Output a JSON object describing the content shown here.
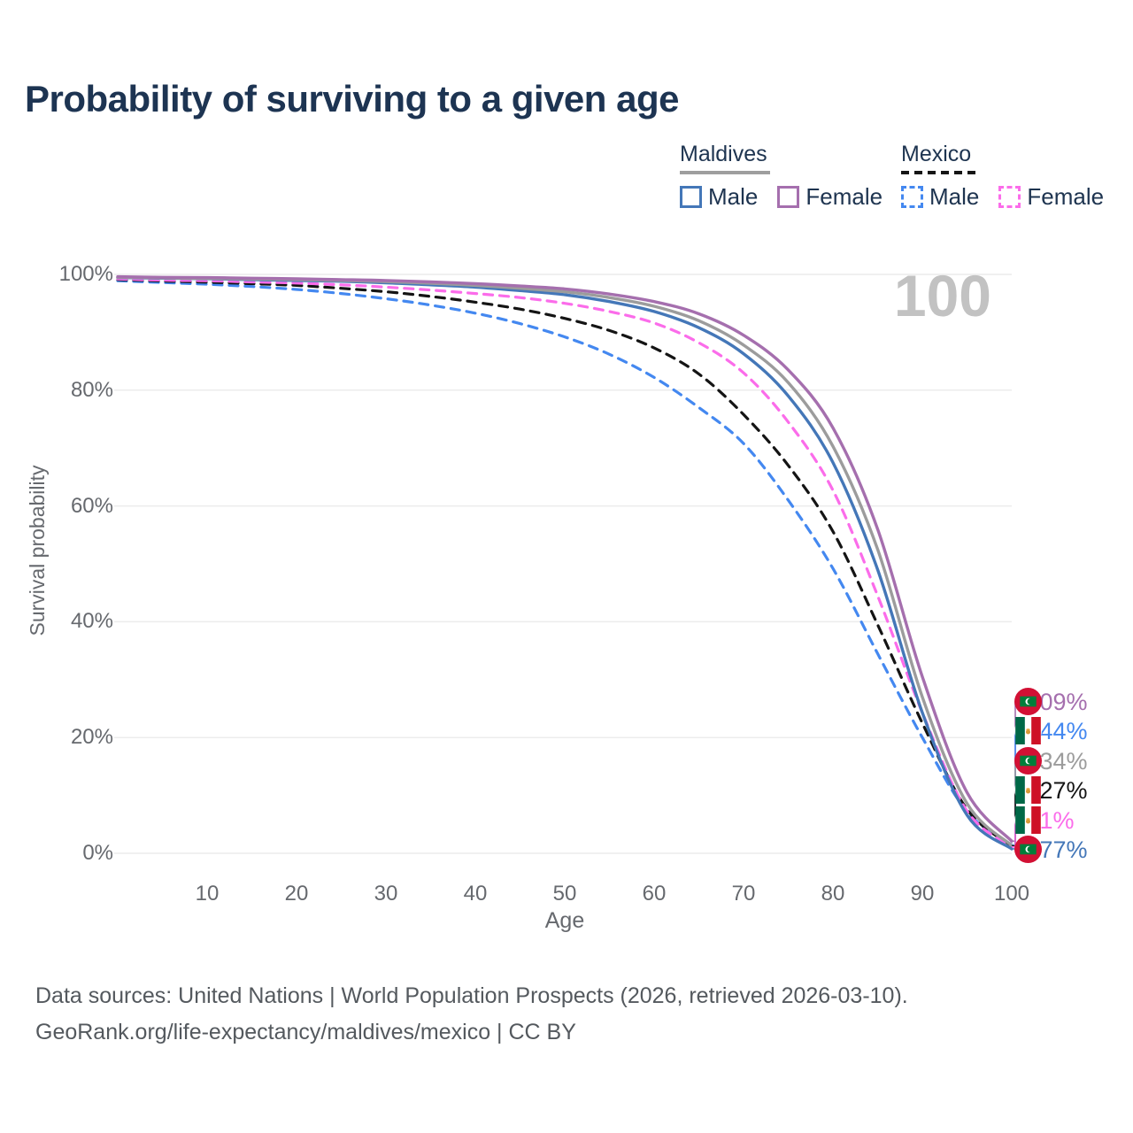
{
  "title": "Probability of surviving to a given age",
  "big_age_annotation": "100",
  "legend": {
    "groups": [
      {
        "label": "Maldives",
        "line_style": "solid",
        "underline_color": "#9e9e9e",
        "items": [
          {
            "label": "Male",
            "color": "#4477b8"
          },
          {
            "label": "Female",
            "color": "#a56fae"
          }
        ]
      },
      {
        "label": "Mexico",
        "line_style": "dashed",
        "underline_color": "#151515",
        "items": [
          {
            "label": "Male",
            "color": "#4488f0"
          },
          {
            "label": "Female",
            "color": "#fb6cea"
          }
        ]
      }
    ]
  },
  "axes": {
    "xlabel": "Age",
    "ylabel": "Survival probability",
    "x_ticks": [
      10,
      20,
      30,
      40,
      50,
      60,
      70,
      80,
      90,
      100
    ],
    "y_ticks": [
      {
        "value": 100,
        "label": "100%"
      },
      {
        "value": 80,
        "label": "80%"
      },
      {
        "value": 60,
        "label": "60%"
      },
      {
        "value": 40,
        "label": "40%"
      },
      {
        "value": 20,
        "label": "20%"
      },
      {
        "value": 0,
        "label": "0%"
      }
    ]
  },
  "chart_data": {
    "type": "line",
    "title": "Probability of surviving to a given age",
    "xlabel": "Age",
    "ylabel": "Survival probability",
    "xlim": [
      0,
      100
    ],
    "ylim": [
      0,
      100
    ],
    "grid": "horizontal-only",
    "legend_position": "top-right",
    "x": [
      0,
      5,
      10,
      15,
      20,
      25,
      30,
      35,
      40,
      45,
      50,
      55,
      60,
      65,
      70,
      75,
      80,
      85,
      90,
      95,
      100
    ],
    "series": [
      {
        "id": "mex-male",
        "name": "Mexico Male",
        "color": "#4488f0",
        "dash": true,
        "values": [
          98.9,
          98.6,
          98.3,
          97.9,
          97.4,
          96.7,
          95.8,
          94.7,
          93.3,
          91.5,
          89.2,
          86.2,
          82.2,
          77.0,
          70.8,
          61.0,
          49.2,
          34.5,
          20.0,
          7.2,
          1.44
        ]
      },
      {
        "id": "mex-total",
        "name": "Mexico Both sexes",
        "color": "#141414",
        "dash": true,
        "values": [
          99.1,
          98.85,
          98.65,
          98.4,
          98.1,
          97.6,
          97.0,
          96.2,
          95.2,
          94.0,
          92.4,
          90.3,
          87.3,
          82.8,
          75.8,
          67.0,
          55.6,
          39.5,
          22.5,
          7.6,
          1.27
        ]
      },
      {
        "id": "mex-female",
        "name": "Mexico Female",
        "color": "#fb6cea",
        "dash": true,
        "values": [
          99.2,
          99.0,
          98.9,
          98.7,
          98.5,
          98.2,
          97.8,
          97.3,
          96.7,
          96.0,
          95.0,
          93.6,
          91.6,
          88.2,
          83.0,
          74.5,
          62.7,
          44.5,
          24.3,
          7.3,
          1.1
        ]
      },
      {
        "id": "mdv-male",
        "name": "Maldives Male",
        "color": "#4477b8",
        "dash": false,
        "values": [
          99.45,
          99.35,
          99.25,
          99.1,
          98.95,
          98.8,
          98.55,
          98.2,
          97.8,
          97.2,
          96.5,
          95.3,
          93.6,
          90.8,
          86.3,
          79.0,
          67.5,
          49.0,
          24.3,
          6.6,
          0.77
        ]
      },
      {
        "id": "mdv-total",
        "name": "Maldives Both sexes",
        "color": "#9c9c9c",
        "dash": false,
        "values": [
          99.5,
          99.4,
          99.3,
          99.2,
          99.1,
          98.95,
          98.75,
          98.45,
          98.1,
          97.6,
          97.0,
          96.0,
          94.5,
          92.0,
          87.8,
          81.3,
          70.3,
          52.5,
          27.0,
          8.6,
          1.34
        ]
      },
      {
        "id": "mdv-female",
        "name": "Maldives Female",
        "color": "#a56fae",
        "dash": false,
        "values": [
          99.6,
          99.5,
          99.45,
          99.35,
          99.25,
          99.1,
          98.95,
          98.7,
          98.4,
          98.0,
          97.5,
          96.6,
          95.3,
          93.2,
          89.5,
          83.5,
          73.5,
          56.0,
          30.5,
          10.5,
          2.09
        ]
      }
    ],
    "end_labels": [
      {
        "series_id": "mdv-female",
        "text": "2.09%",
        "flag": "maldives",
        "color": "#a56fae"
      },
      {
        "series_id": "mex-male",
        "text": "1.44%",
        "flag": "mexico",
        "color": "#4488f0"
      },
      {
        "series_id": "mdv-total",
        "text": "1.34%",
        "flag": "maldives",
        "color": "#9c9c9c"
      },
      {
        "series_id": "mex-total",
        "text": "1.27%",
        "flag": "mexico",
        "color": "#141414"
      },
      {
        "series_id": "mex-female",
        "text": "1.1%",
        "flag": "mexico",
        "color": "#fb6cea"
      },
      {
        "series_id": "mdv-male",
        "text": "0.77%",
        "flag": "maldives",
        "color": "#4477b8"
      }
    ]
  },
  "footer": {
    "line1": "Data sources: United Nations | World Population Prospects (2026, retrieved 2026-03-10).",
    "line2": "GeoRank.org/life-expectancy/maldives/mexico | CC BY"
  }
}
